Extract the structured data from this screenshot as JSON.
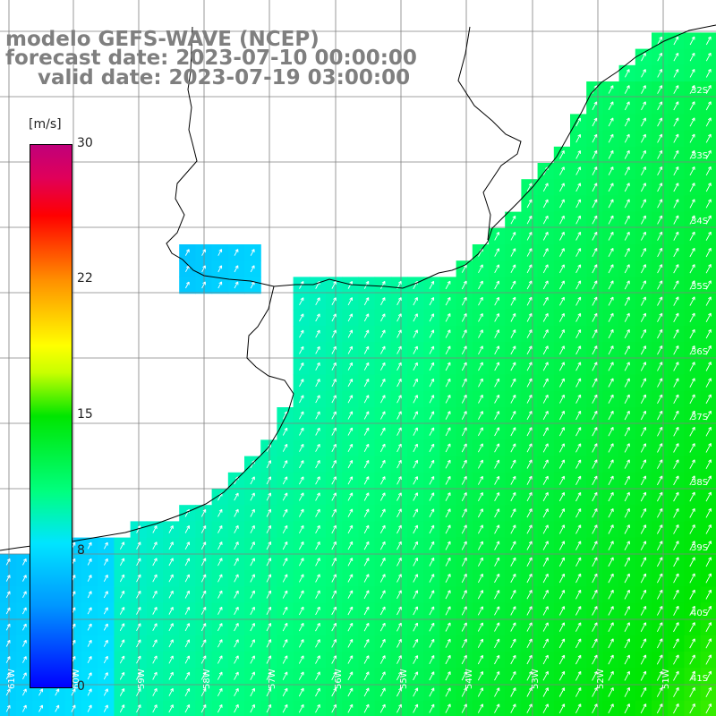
{
  "title": {
    "line1": "modelo GEFS-WAVE (NCEP)",
    "line2": "forecast date: 2023-07-10 00:00:00",
    "line3": "valid date: 2023-07-19 03:00:00"
  },
  "colorbar": {
    "unit": "[m/s]",
    "min": 0,
    "max": 30,
    "ticks": [
      "30",
      "22",
      "15",
      "8",
      "0"
    ],
    "tick_values": [
      30,
      22,
      15,
      8,
      0
    ]
  },
  "map": {
    "variable": "wind speed and direction",
    "longitude_labels": [
      "61W",
      "60W",
      "59W",
      "58W",
      "57W",
      "56W",
      "55W",
      "54W",
      "53W",
      "52W",
      "51W"
    ],
    "latitude_labels": [
      "32S",
      "33S",
      "34S",
      "35S",
      "36S",
      "37S",
      "38S",
      "39S",
      "40S",
      "41S"
    ],
    "prevailing_wind": "southwesterly, blowing toward the northeast",
    "colors": {
      "land": "#ffffff",
      "coast": "#000000",
      "grid": "#808080",
      "low_speed": "#0050ff",
      "high_speed": "#b4ff1e"
    }
  }
}
